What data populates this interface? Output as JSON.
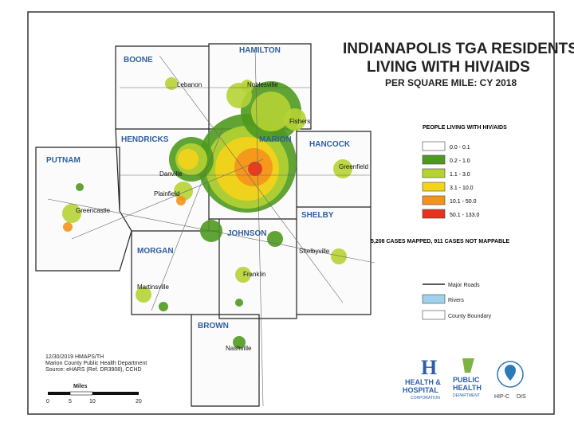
{
  "title": {
    "line1": "INDIANAPOLIS TGA RESIDENTS",
    "line2": "LIVING WITH HIV/AIDS",
    "subtitle": "PER SQUARE MILE: CY 2018"
  },
  "counties": [
    "BOONE",
    "HAMILTON",
    "HENDRICKS",
    "MARION",
    "HANCOCK",
    "PUTNAM",
    "SHELBY",
    "MORGAN",
    "JOHNSON",
    "BROWN"
  ],
  "cities": [
    "Lebanon",
    "Noblesville",
    "Fishers",
    "Danville",
    "Plainfield",
    "Greenfield",
    "Greencastle",
    "Shelbyville",
    "Franklin",
    "Martinsville",
    "Nashville"
  ],
  "legend": {
    "title": "PEOPLE LIVING WITH HIV/AIDS",
    "classes": [
      {
        "label": "0.0 - 0.1",
        "color": "#ffffff"
      },
      {
        "label": "0.2 - 1.0",
        "color": "#4e9a1e"
      },
      {
        "label": "1.1 - 3.0",
        "color": "#b5d334"
      },
      {
        "label": "3.1 - 10.0",
        "color": "#f5d31a"
      },
      {
        "label": "10.1 - 50.0",
        "color": "#f5921e"
      },
      {
        "label": "50.1 - 133.0",
        "color": "#e8321e"
      }
    ],
    "note": "5,208 CASES MAPPED, 911 CASES NOT MAPPABLE",
    "reference": [
      "Major Roads",
      "Rivers",
      "County Boundary"
    ]
  },
  "source": [
    "12/30/2019 HMAPS/TH",
    "Marion County Public Health Department",
    "Source: eHARS (Ref. DR3908), CCHD"
  ],
  "scale": {
    "title": "Miles",
    "labels": [
      "0",
      "5",
      "10",
      "20"
    ]
  },
  "logos": [
    "HEALTH &",
    "HOSPITAL",
    "CORPORATION",
    "PUBLIC",
    "HEALTH",
    "DEPARTMENT",
    "HIP-C",
    "DIS"
  ]
}
